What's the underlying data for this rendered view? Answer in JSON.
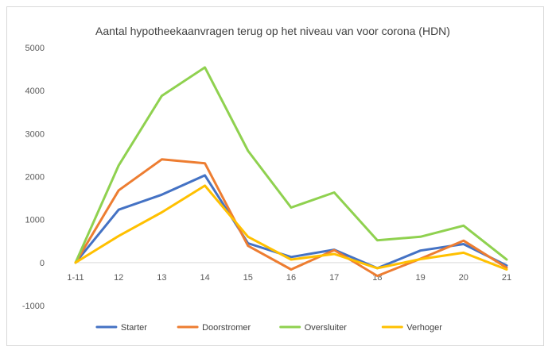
{
  "chart_data": {
    "type": "line",
    "title": "Aantal hypotheekaanvragen terug op het niveau van voor corona (HDN)",
    "xlabel": "",
    "ylabel": "",
    "categories": [
      "1-11",
      "12",
      "13",
      "14",
      "15",
      "16",
      "17",
      "18",
      "19",
      "20",
      "21"
    ],
    "ylim": [
      -1000,
      5000
    ],
    "yticks": [
      "-1000",
      "0",
      "1000",
      "2000",
      "3000",
      "4000",
      "5000"
    ],
    "grid": false,
    "legend": "bottom",
    "series": [
      {
        "name": "Starter",
        "color": "#4472C4",
        "values": [
          0,
          1230,
          1580,
          2030,
          450,
          130,
          300,
          -130,
          280,
          430,
          -70
        ]
      },
      {
        "name": "Doorstromer",
        "color": "#ED7D31",
        "values": [
          0,
          1680,
          2400,
          2310,
          390,
          -160,
          290,
          -310,
          90,
          510,
          -120
        ]
      },
      {
        "name": "Oversluiter",
        "color": "#8FD14F",
        "values": [
          0,
          2260,
          3880,
          4540,
          2600,
          1280,
          1630,
          520,
          600,
          860,
          70
        ]
      },
      {
        "name": "Verhoger",
        "color": "#FFC000",
        "values": [
          0,
          620,
          1170,
          1790,
          600,
          70,
          200,
          -130,
          80,
          230,
          -160
        ]
      }
    ]
  }
}
